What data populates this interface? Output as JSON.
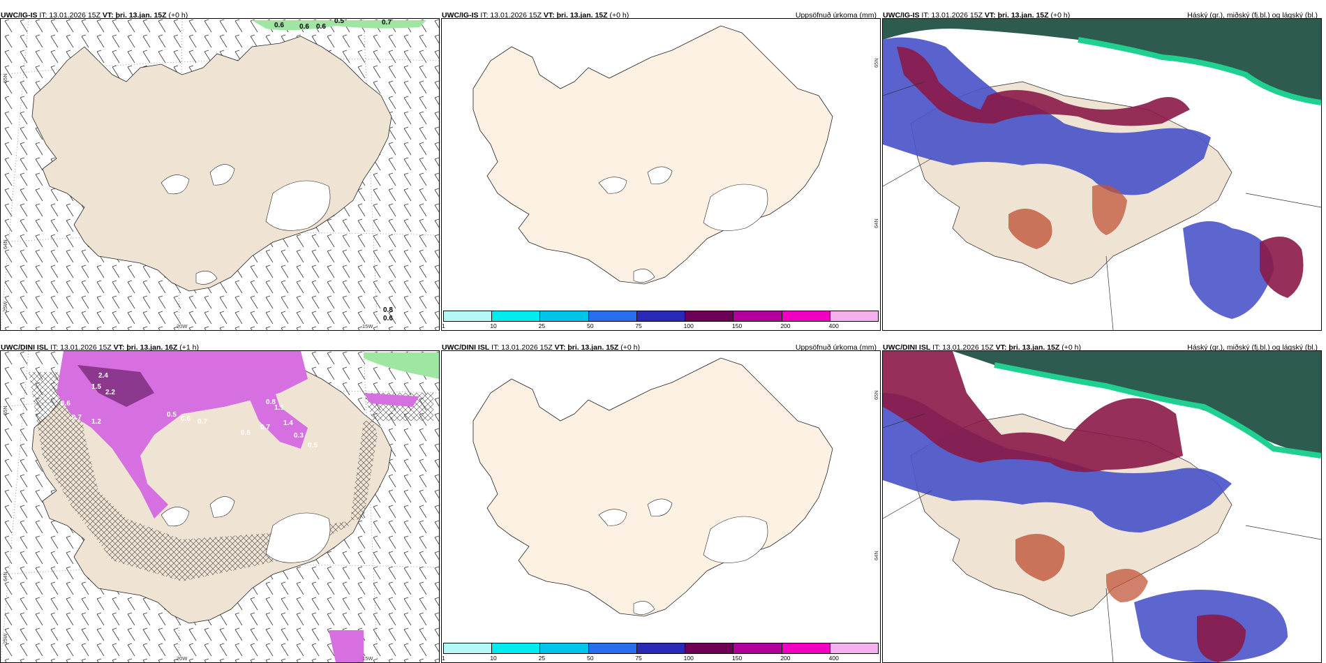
{
  "panels": [
    {
      "source": "UWC/IG-IS",
      "it_label": "IT: 13.01.2026 15Z",
      "vt_label": "VT: þri. 13.jan. 15Z",
      "lead": "(+0 h)",
      "right_title": "",
      "lat_labels": [
        "65N",
        "64N"
      ],
      "lon_labels": [
        "25W",
        "20W",
        "15W"
      ],
      "contour_labels": [
        "0.6",
        "0.6",
        "0.6",
        "0.5",
        "0.7",
        "0.8",
        "0.6"
      ]
    },
    {
      "source": "UWC/IG-IS",
      "it_label": "IT: 13.01.2026 15Z",
      "vt_label": "VT: þri. 13.jan. 15Z",
      "lead": "(+0 h)",
      "right_title": "Uppsöfnuð úrkoma (mm)",
      "lat_labels": [
        "65N",
        "64N"
      ],
      "colorbar": {
        "colors": [
          "#b4f8f8",
          "#00ecec",
          "#00c4e8",
          "#2a6ef0",
          "#2a2ab8",
          "#6e0058",
          "#b4009a",
          "#f000c0",
          "#f6b0f0"
        ],
        "ticks": [
          "1",
          "10",
          "25",
          "50",
          "75",
          "100",
          "150",
          "200",
          "400"
        ]
      }
    },
    {
      "source": "UWC/IG-IS",
      "it_label": "IT: 13.01.2026 15Z",
      "vt_label": "VT: þri. 13.jan. 15Z",
      "lead": "(+0 h)",
      "right_title": "Háský (gr.), miðský (fj.bl.) og lágský (bl.)"
    },
    {
      "source": "UWC/DINI ISL",
      "it_label": "IT: 13.01.2026 15Z",
      "vt_label": "VT: þri. 13.jan. 16Z",
      "lead": "(+1 h)",
      "right_title": "",
      "lat_labels": [
        "65N",
        "64N"
      ],
      "lon_labels": [
        "25W",
        "20W",
        "15W"
      ],
      "contour_labels": [
        "2.4",
        "1.5",
        "2.2",
        "0.6",
        "0.7",
        "1.2",
        "0.5",
        "0.6",
        "0.7",
        "0.8",
        "1.1",
        "1.4",
        "0.3",
        "0.5",
        "0.6",
        "0.7"
      ]
    },
    {
      "source": "UWC/DINI ISL",
      "it_label": "IT: 13.01.2026 15Z",
      "vt_label": "VT: þri. 13.jan. 15Z",
      "lead": "(+0 h)",
      "right_title": "Uppsöfnuð úrkoma (mm)",
      "lat_labels": [
        "65N",
        "64N"
      ],
      "colorbar": {
        "colors": [
          "#b4f8f8",
          "#00ecec",
          "#00c4e8",
          "#2a6ef0",
          "#2a2ab8",
          "#6e0058",
          "#b4009a",
          "#f000c0",
          "#f6b0f0"
        ],
        "ticks": [
          "1",
          "10",
          "25",
          "50",
          "75",
          "100",
          "150",
          "200",
          "400"
        ]
      }
    },
    {
      "source": "UWC/DINI ISL",
      "it_label": "IT: 13.01.2026 15Z",
      "vt_label": "VT: þri. 13.jan. 15Z",
      "lead": "(+0 h)",
      "right_title": "Háský (gr.), miðský (fj.bl.) og lágský (bl.)"
    }
  ],
  "colors": {
    "land": "#efe3d3",
    "land_light": "#fdf1e3",
    "high_cloud": "#2e5b50",
    "high_cloud_edge": "#1fd091",
    "mid_cloud": "#8b1a48",
    "low_cloud": "#4b55c9",
    "precip_green": "#9fe6a3",
    "precip_magenta": "#d66fe0",
    "precip_dark": "#7b2a7a"
  }
}
